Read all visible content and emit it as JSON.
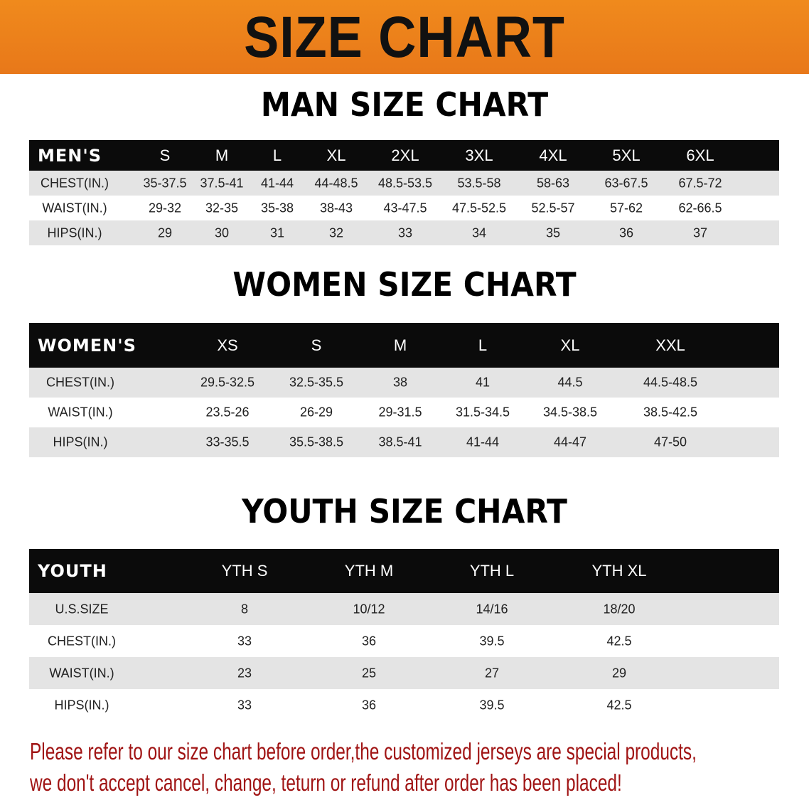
{
  "banner": {
    "title": "SIZE CHART",
    "color": "#ec801a"
  },
  "sections": [
    {
      "title": "MAN SIZE CHART",
      "header": [
        "MEN'S",
        "S",
        "M",
        "L",
        "XL",
        "2XL",
        "3XL",
        "4XL",
        "5XL",
        "6XL"
      ],
      "rows": [
        [
          "CHEST(IN.)",
          "35-37.5",
          "37.5-41",
          "41-44",
          "44-48.5",
          "48.5-53.5",
          "53.5-58",
          "58-63",
          "63-67.5",
          "67.5-72"
        ],
        [
          "WAIST(IN.)",
          "29-32",
          "32-35",
          "35-38",
          "38-43",
          "43-47.5",
          "47.5-52.5",
          "52.5-57",
          "57-62",
          "62-66.5"
        ],
        [
          "HIPS(IN.)",
          "29",
          "30",
          "31",
          "32",
          "33",
          "34",
          "35",
          "36",
          "37"
        ]
      ]
    },
    {
      "title": "WOMEN SIZE CHART",
      "header": [
        "WOMEN'S",
        "XS",
        "S",
        "M",
        "L",
        "XL",
        "XXL"
      ],
      "rows": [
        [
          "CHEST(IN.)",
          "29.5-32.5",
          "32.5-35.5",
          "38",
          "41",
          "44.5",
          "44.5-48.5"
        ],
        [
          "WAIST(IN.)",
          "23.5-26",
          "26-29",
          "29-31.5",
          "31.5-34.5",
          "34.5-38.5",
          "38.5-42.5"
        ],
        [
          "HIPS(IN.)",
          "33-35.5",
          "35.5-38.5",
          "38.5-41",
          "41-44",
          "44-47",
          "47-50"
        ]
      ]
    },
    {
      "title": "YOUTH SIZE CHART",
      "header": [
        "YOUTH",
        "YTH S",
        "YTH M",
        "YTH L",
        "YTH XL"
      ],
      "rows": [
        [
          "U.S.SIZE",
          "8",
          "10/12",
          "14/16",
          "18/20"
        ],
        [
          "CHEST(IN.)",
          "33",
          "36",
          "39.5",
          "42.5"
        ],
        [
          "WAIST(IN.)",
          "23",
          "25",
          "27",
          "29"
        ],
        [
          "HIPS(IN.)",
          "33",
          "36",
          "39.5",
          "42.5"
        ]
      ]
    }
  ],
  "footer": {
    "line1": "Please refer to our size chart before order,the customized jerseys are special products,",
    "line2": "we don't accept cancel, change, teturn or refund after order has been placed!",
    "color": "#a01414"
  }
}
